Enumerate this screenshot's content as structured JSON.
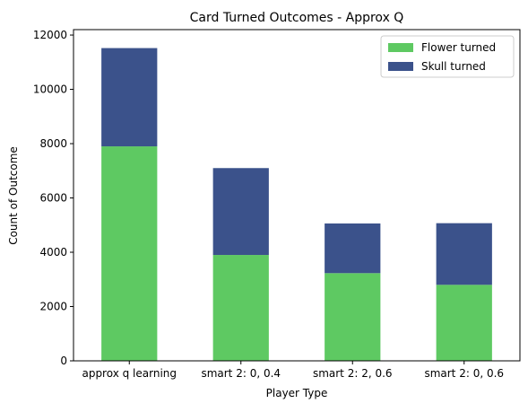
{
  "chart_data": {
    "type": "bar",
    "stacked": true,
    "title": "Card Turned Outcomes - Approx Q",
    "xlabel": "Player Type",
    "ylabel": "Count of Outcome",
    "categories": [
      "approx q learning",
      "smart 2: 0, 0.4",
      "smart 2: 2, 0.6",
      "smart 2: 0, 0.6"
    ],
    "series": [
      {
        "name": "Flower turned",
        "color": "#5ec962",
        "values": [
          7900,
          3900,
          3230,
          2800
        ]
      },
      {
        "name": "Skull turned",
        "color": "#3b528b",
        "values": [
          3620,
          3200,
          1830,
          2270
        ]
      }
    ],
    "ylim": [
      0,
      12200
    ],
    "yticks": [
      0,
      2000,
      4000,
      6000,
      8000,
      10000,
      12000
    ],
    "legend_position": "top-right",
    "grid": false
  }
}
